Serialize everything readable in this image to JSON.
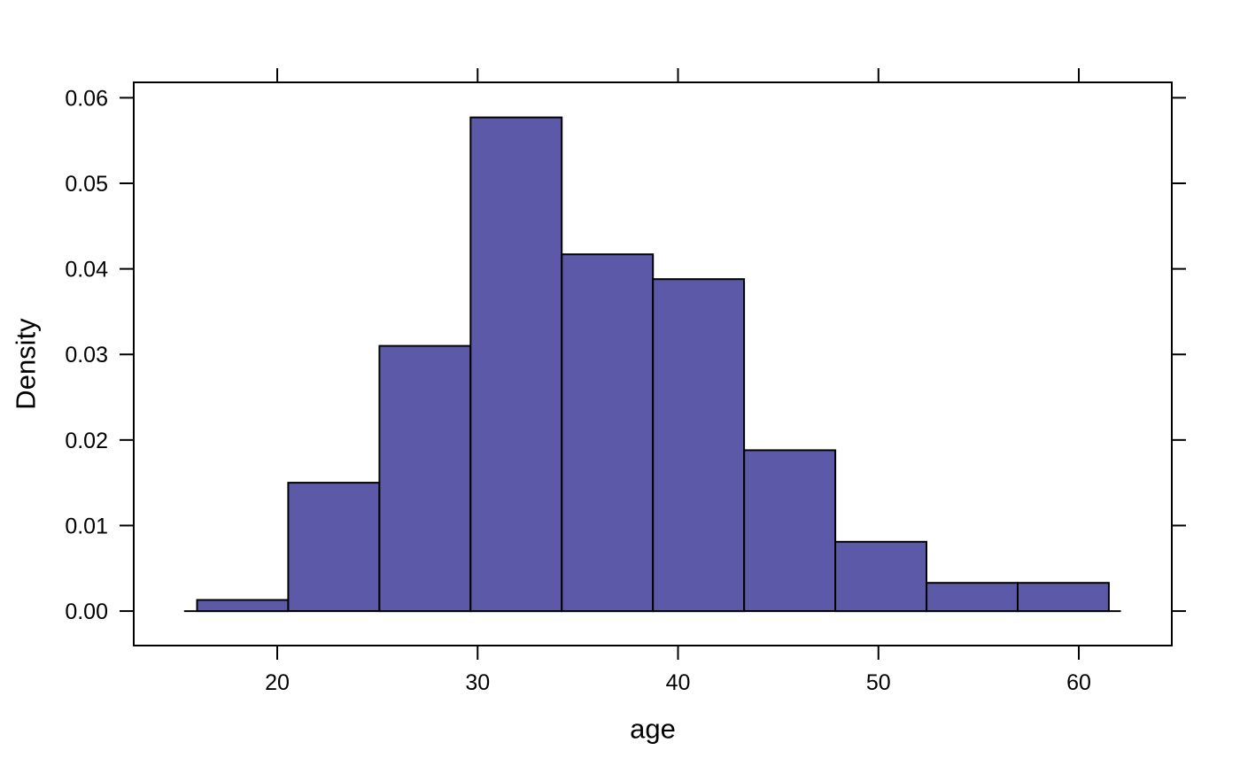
{
  "figure": {
    "background": "#FFFFFF"
  },
  "chart_data": {
    "type": "bar",
    "variant": "histogram-density",
    "title": "",
    "xlabel": "age",
    "ylabel": "Density",
    "bin_edges": [
      16.0,
      20.55,
      25.1,
      29.65,
      34.2,
      38.75,
      43.3,
      47.85,
      52.4,
      56.95,
      61.5
    ],
    "densities": [
      0.0013,
      0.015,
      0.031,
      0.0577,
      0.0417,
      0.0388,
      0.0188,
      0.0081,
      0.0033,
      0.0033
    ],
    "x_ticks": [
      20,
      30,
      40,
      50,
      60
    ],
    "x_tick_labels": [
      "20",
      "30",
      "40",
      "50",
      "60"
    ],
    "y_ticks": [
      0.0,
      0.01,
      0.02,
      0.03,
      0.04,
      0.05,
      0.06
    ],
    "y_tick_labels": [
      "0.00",
      "0.01",
      "0.02",
      "0.03",
      "0.04",
      "0.05",
      "0.06"
    ],
    "xlim": [
      12.84,
      64.64
    ],
    "ylim": [
      -0.00403,
      0.0618
    ],
    "baseline_range": [
      15.35,
      62.1
    ],
    "grid": false,
    "legend": null,
    "ticks_on_all_four_sides": true,
    "colors": {
      "bar_fill": "#5C5AA8",
      "bar_stroke": "#000000",
      "axis": "#000000",
      "text": "#000000",
      "background": "#FFFFFF"
    }
  }
}
